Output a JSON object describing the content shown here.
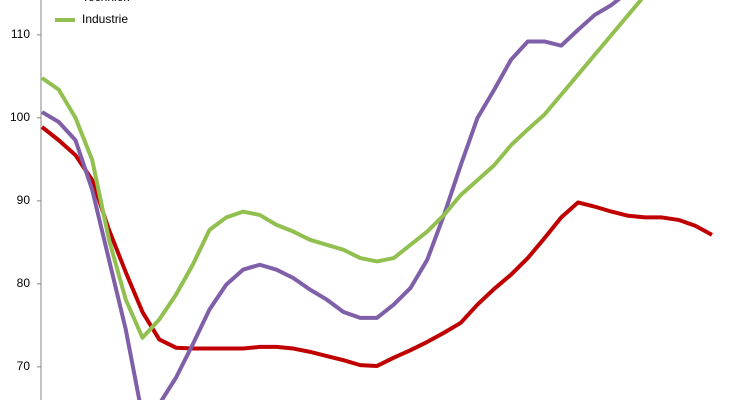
{
  "chart_data": {
    "type": "line",
    "categories": [
      null,
      null,
      null,
      null,
      null,
      null,
      null,
      null,
      null,
      null,
      null,
      null,
      null,
      null,
      null,
      null,
      null,
      null,
      null,
      null,
      null,
      null,
      null,
      null,
      null,
      null,
      null,
      null,
      null,
      null,
      null,
      null,
      null,
      null,
      null,
      null,
      null,
      null,
      null,
      null,
      null
    ],
    "series": [
      {
        "color": "#c00000",
        "values": [
          98.9,
          97.3,
          95.5,
          92.5,
          86.5,
          81.4,
          76.6,
          73.3,
          72.3,
          72.2,
          72.2,
          72.2,
          72.2,
          72.4,
          72.4,
          72.2,
          71.8,
          71.3,
          70.8,
          70.2,
          70.1,
          71.1,
          72.0,
          73.0,
          74.1,
          75.3,
          77.5,
          79.4,
          81.1,
          83.1,
          85.5,
          88.0,
          89.8,
          89.3,
          88.7,
          88.2,
          88.0,
          88.0,
          87.7,
          87.0,
          85.9
        ]
      },
      {
        "name": "Techniek",
        "color": "#7f5fa8",
        "values": [
          100.7,
          99.5,
          97.3,
          91.3,
          82.9,
          74.5,
          64.0,
          65.5,
          68.7,
          72.7,
          76.9,
          79.9,
          81.7,
          82.3,
          81.7,
          80.7,
          79.3,
          78.1,
          76.6,
          75.9,
          75.9,
          77.5,
          79.5,
          82.9,
          88.3,
          94.3,
          100.0,
          103.4,
          107.0,
          109.2,
          109.2,
          108.7,
          110.6,
          112.4,
          113.6,
          115.2,
          116.6,
          null,
          null,
          null,
          null
        ]
      },
      {
        "name": "Industrie",
        "color": "#92c050",
        "values": [
          104.8,
          103.4,
          100.0,
          94.9,
          85.3,
          78.1,
          73.5,
          75.7,
          78.7,
          82.3,
          86.5,
          88.0,
          88.7,
          88.3,
          87.1,
          86.3,
          85.3,
          84.7,
          84.1,
          83.1,
          82.7,
          83.1,
          84.7,
          86.3,
          88.3,
          90.7,
          92.5,
          94.3,
          96.7,
          98.6,
          100.4,
          102.8,
          105.2,
          107.6,
          110.0,
          112.4,
          114.8,
          116.6,
          null,
          null,
          null
        ]
      }
    ],
    "ylim": [
      66,
      114.2
    ],
    "yticks": [
      70,
      80,
      90,
      100,
      110
    ],
    "grid": false,
    "legend": "upper left"
  }
}
